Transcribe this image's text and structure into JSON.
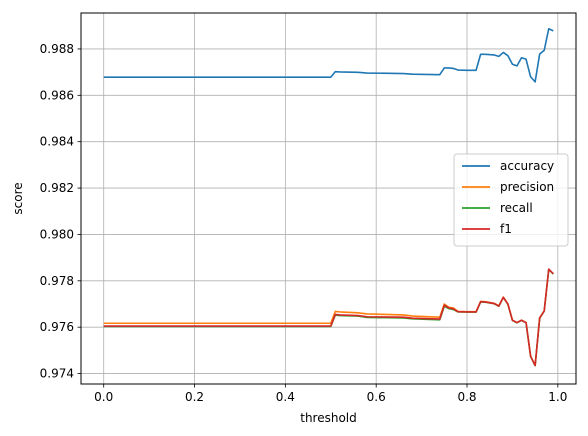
{
  "chart_data": {
    "type": "line",
    "xlabel": "threshold",
    "ylabel": "score",
    "xlim": [
      -0.05,
      1.04
    ],
    "ylim": [
      0.97355,
      0.98955
    ],
    "xticks": [
      0.0,
      0.2,
      0.4,
      0.6,
      0.8,
      1.0
    ],
    "xtick_labels": [
      "0.0",
      "0.2",
      "0.4",
      "0.6",
      "0.8",
      "1.0"
    ],
    "yticks": [
      0.974,
      0.976,
      0.978,
      0.98,
      0.982,
      0.984,
      0.986,
      0.988
    ],
    "ytick_labels": [
      "0.974",
      "0.976",
      "0.978",
      "0.980",
      "0.982",
      "0.984",
      "0.986",
      "0.988"
    ],
    "grid": true,
    "legend_position": "center-right",
    "series": [
      {
        "name": "accuracy",
        "color": "#1f77b4",
        "x": [
          0.0,
          0.5,
          0.51,
          0.52,
          0.56,
          0.58,
          0.66,
          0.68,
          0.74,
          0.75,
          0.76,
          0.77,
          0.78,
          0.8,
          0.82,
          0.83,
          0.84,
          0.86,
          0.87,
          0.88,
          0.89,
          0.9,
          0.91,
          0.92,
          0.93,
          0.94,
          0.95,
          0.96,
          0.97,
          0.98,
          0.99
        ],
        "values": [
          0.98678,
          0.98678,
          0.98702,
          0.98701,
          0.98699,
          0.98696,
          0.98694,
          0.98691,
          0.98689,
          0.98718,
          0.98718,
          0.98716,
          0.98709,
          0.98708,
          0.98708,
          0.98777,
          0.98777,
          0.98774,
          0.98768,
          0.98785,
          0.98771,
          0.98734,
          0.98727,
          0.98762,
          0.98756,
          0.9868,
          0.98658,
          0.98778,
          0.98794,
          0.98887,
          0.98878
        ]
      },
      {
        "name": "precision",
        "color": "#ff7f0e",
        "x": [
          0.0,
          0.5,
          0.51,
          0.52,
          0.56,
          0.58,
          0.66,
          0.68,
          0.74,
          0.75,
          0.76,
          0.77,
          0.78,
          0.8,
          0.82,
          0.83,
          0.84,
          0.86,
          0.87,
          0.88,
          0.89,
          0.9,
          0.91,
          0.92,
          0.93,
          0.94,
          0.95,
          0.96,
          0.97,
          0.98,
          0.99
        ],
        "values": [
          0.97617,
          0.97617,
          0.97668,
          0.97666,
          0.97662,
          0.97657,
          0.97653,
          0.97648,
          0.97643,
          0.977,
          0.97686,
          0.97683,
          0.97668,
          0.97667,
          0.97667,
          0.97711,
          0.9771,
          0.97703,
          0.97692,
          0.9773,
          0.977,
          0.9763,
          0.9762,
          0.9763,
          0.9762,
          0.97475,
          0.97435,
          0.9764,
          0.9767,
          0.9785,
          0.9783
        ]
      },
      {
        "name": "recall",
        "color": "#2ca02c",
        "x": [
          0.0,
          0.5,
          0.51,
          0.52,
          0.56,
          0.58,
          0.66,
          0.68,
          0.74,
          0.75,
          0.76,
          0.77,
          0.78,
          0.8,
          0.82,
          0.83,
          0.84,
          0.86,
          0.87,
          0.88,
          0.89,
          0.9,
          0.91,
          0.92,
          0.93,
          0.94,
          0.95,
          0.96,
          0.97,
          0.98,
          0.99
        ],
        "values": [
          0.97603,
          0.97603,
          0.97652,
          0.9765,
          0.97648,
          0.97642,
          0.9764,
          0.97636,
          0.97632,
          0.9769,
          0.9768,
          0.97676,
          0.97666,
          0.97665,
          0.97665,
          0.97709,
          0.97708,
          0.97701,
          0.9769,
          0.97728,
          0.97699,
          0.97629,
          0.97619,
          0.97629,
          0.97619,
          0.97474,
          0.97434,
          0.97639,
          0.97669,
          0.97849,
          0.97829
        ]
      },
      {
        "name": "f1",
        "color": "#d62728",
        "x": [
          0.0,
          0.5,
          0.51,
          0.52,
          0.56,
          0.58,
          0.66,
          0.68,
          0.74,
          0.75,
          0.76,
          0.77,
          0.78,
          0.8,
          0.82,
          0.83,
          0.84,
          0.86,
          0.87,
          0.88,
          0.89,
          0.9,
          0.91,
          0.92,
          0.93,
          0.94,
          0.95,
          0.96,
          0.97,
          0.98,
          0.99
        ],
        "values": [
          0.97605,
          0.97605,
          0.97655,
          0.97653,
          0.9765,
          0.97645,
          0.97643,
          0.97639,
          0.97635,
          0.97695,
          0.97683,
          0.97679,
          0.97667,
          0.97666,
          0.97666,
          0.9771,
          0.97709,
          0.97702,
          0.97691,
          0.97729,
          0.977,
          0.9763,
          0.9762,
          0.9763,
          0.9762,
          0.97475,
          0.97435,
          0.9764,
          0.9767,
          0.9785,
          0.9783
        ]
      }
    ]
  }
}
